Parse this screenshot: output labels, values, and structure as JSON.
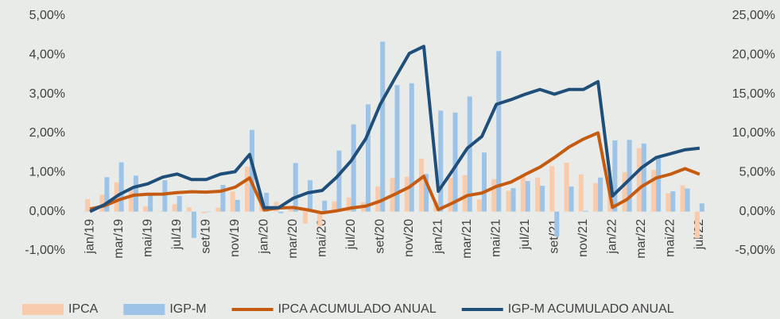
{
  "chart_data": {
    "type": "bar-line",
    "categories": [
      "jan/19",
      null,
      "mar/19",
      null,
      "mai/19",
      null,
      "jul/19",
      null,
      "set/19",
      null,
      "nov/19",
      null,
      "jan/20",
      null,
      "mar/20",
      null,
      "mai/20",
      null,
      "jul/20",
      null,
      "set/20",
      null,
      "nov/20",
      null,
      "jan/21",
      null,
      "mar/21",
      null,
      "mai/21",
      null,
      "jul/21",
      null,
      "set/21",
      null,
      "nov/21",
      null,
      "jan/22",
      null,
      "mar/22",
      null,
      "mai/22",
      null,
      "jul/22"
    ],
    "series": [
      {
        "name": "IPCA",
        "type": "bar",
        "color": "#f8cbad",
        "values": [
          0.32,
          0.43,
          0.75,
          0.57,
          0.13,
          0.01,
          0.19,
          0.11,
          -0.04,
          0.1,
          0.51,
          1.15,
          0.21,
          0.25,
          0.07,
          -0.31,
          -0.38,
          0.26,
          0.36,
          0.24,
          0.64,
          0.86,
          0.89,
          1.35,
          0.25,
          0.86,
          0.93,
          0.31,
          0.83,
          0.53,
          0.96,
          0.87,
          1.16,
          1.25,
          0.95,
          0.73,
          0.54,
          1.01,
          1.62,
          1.06,
          0.47,
          0.67,
          -0.68
        ]
      },
      {
        "name": "IGP-M",
        "type": "bar",
        "color": "#9dc3e6",
        "values": [
          0.01,
          0.88,
          1.26,
          0.92,
          0.45,
          0.8,
          0.4,
          -0.67,
          -0.01,
          0.68,
          0.3,
          2.09,
          0.48,
          -0.04,
          1.24,
          0.8,
          0.28,
          1.56,
          2.23,
          2.74,
          4.34,
          3.23,
          3.28,
          0.96,
          2.58,
          2.53,
          2.94,
          1.51,
          4.1,
          0.6,
          0.78,
          0.66,
          -0.64,
          0.64,
          0.02,
          0.87,
          1.82,
          1.83,
          1.74,
          1.41,
          0.52,
          0.59,
          0.21
        ]
      },
      {
        "name": "IPCA ACUMULADO ANUAL",
        "type": "line",
        "axis": "y2",
        "color": "#c55a11",
        "values": [
          0.32,
          0.75,
          1.51,
          2.09,
          2.22,
          2.23,
          2.42,
          2.54,
          2.49,
          2.6,
          3.12,
          4.31,
          0.21,
          0.46,
          0.53,
          0.22,
          -0.16,
          0.1,
          0.46,
          0.7,
          1.34,
          2.22,
          3.13,
          4.52,
          0.25,
          1.11,
          2.05,
          2.37,
          3.22,
          3.77,
          4.76,
          5.67,
          6.9,
          8.24,
          9.26,
          10.06,
          0.54,
          1.56,
          3.2,
          4.29,
          4.78,
          5.49,
          4.77
        ]
      },
      {
        "name": "IGP-M ACUMULADO ANUAL",
        "type": "line",
        "axis": "y2",
        "color": "#1f4e79",
        "values": [
          0.01,
          0.89,
          2.16,
          3.1,
          3.56,
          4.39,
          4.8,
          4.1,
          4.09,
          4.79,
          5.1,
          7.3,
          0.5,
          0.5,
          1.7,
          2.4,
          2.7,
          4.4,
          6.5,
          9.3,
          13.7,
          17.0,
          20.2,
          21.1,
          2.6,
          5.3,
          8.1,
          9.6,
          13.7,
          14.3,
          15.0,
          15.6,
          15.0,
          15.6,
          15.6,
          16.6,
          2.0,
          3.8,
          5.6,
          6.9,
          7.4,
          7.9,
          8.1
        ]
      }
    ],
    "ylim": [
      -1,
      5
    ],
    "yticks": [
      {
        "value": -1,
        "label": "-1,00%"
      },
      {
        "value": 0,
        "label": "0,00%"
      },
      {
        "value": 1,
        "label": "1,00%"
      },
      {
        "value": 2,
        "label": "2,00%"
      },
      {
        "value": 3,
        "label": "3,00%"
      },
      {
        "value": 4,
        "label": "4,00%"
      },
      {
        "value": 5,
        "label": "5,00%"
      }
    ],
    "y2lim": [
      -5,
      25
    ],
    "y2ticks": [
      {
        "value": -5,
        "label": "-5,00%"
      },
      {
        "value": 0,
        "label": "0,00%"
      },
      {
        "value": 5,
        "label": "5,00%"
      },
      {
        "value": 10,
        "label": "10,00%"
      },
      {
        "value": 15,
        "label": "15,00%"
      },
      {
        "value": 20,
        "label": "20,00%"
      },
      {
        "value": 25,
        "label": "25,00%"
      }
    ],
    "legend": "bottom"
  }
}
